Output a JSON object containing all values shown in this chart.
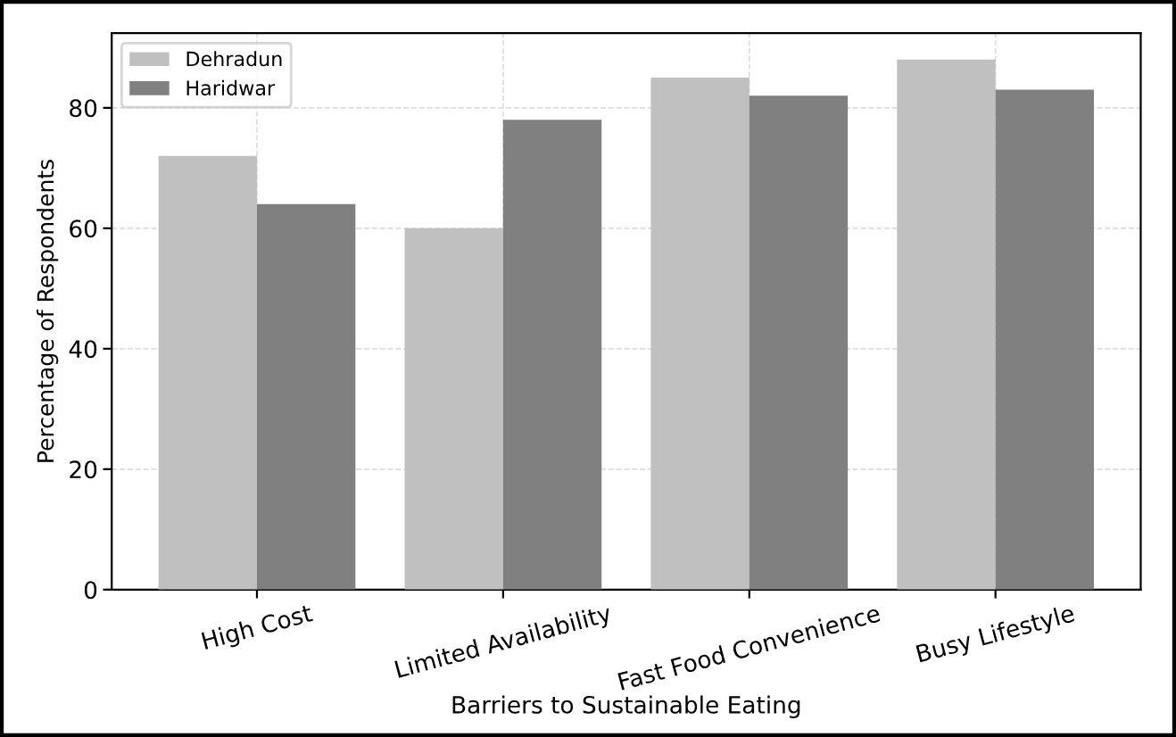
{
  "chart_data": {
    "type": "bar",
    "xlabel": "Barriers to Sustainable Eating",
    "ylabel": "Percentage of Respondents",
    "categories": [
      "High Cost",
      "Limited Availability",
      "Fast Food Convenience",
      "Busy Lifestyle"
    ],
    "series": [
      {
        "name": "Dehradun",
        "color": "#c0c0c0",
        "values": [
          72,
          60,
          85,
          88
        ]
      },
      {
        "name": "Haridwar",
        "color": "#808080",
        "values": [
          64,
          78,
          82,
          83
        ]
      }
    ],
    "ylim": [
      0,
      92.4
    ],
    "yticks": [
      0,
      20,
      40,
      60,
      80
    ],
    "grid": true,
    "legend": "top left"
  }
}
